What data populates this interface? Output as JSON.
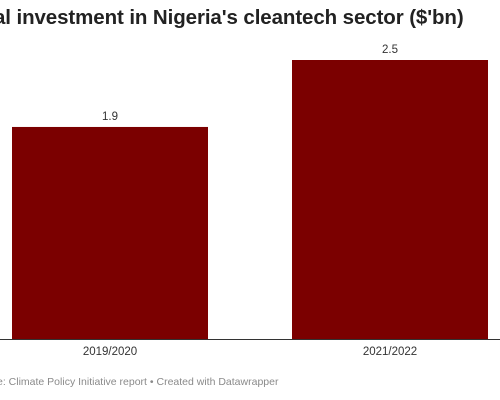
{
  "chart_data": {
    "type": "bar",
    "title": "al investment in Nigeria's cleantech sector ($'bn)",
    "categories": [
      "2019/2020",
      "2021/2022"
    ],
    "values": [
      1.9,
      2.5
    ],
    "data_labels": [
      "1.9",
      "2.5"
    ],
    "xlabel": "",
    "ylabel": "",
    "ylim": [
      0,
      2.5
    ],
    "grid": false,
    "legend": "none",
    "bar_color": "#7b0000",
    "axis_color": "#333333",
    "footer": "e: Climate Policy Initiative report • Created with Datawrapper"
  }
}
